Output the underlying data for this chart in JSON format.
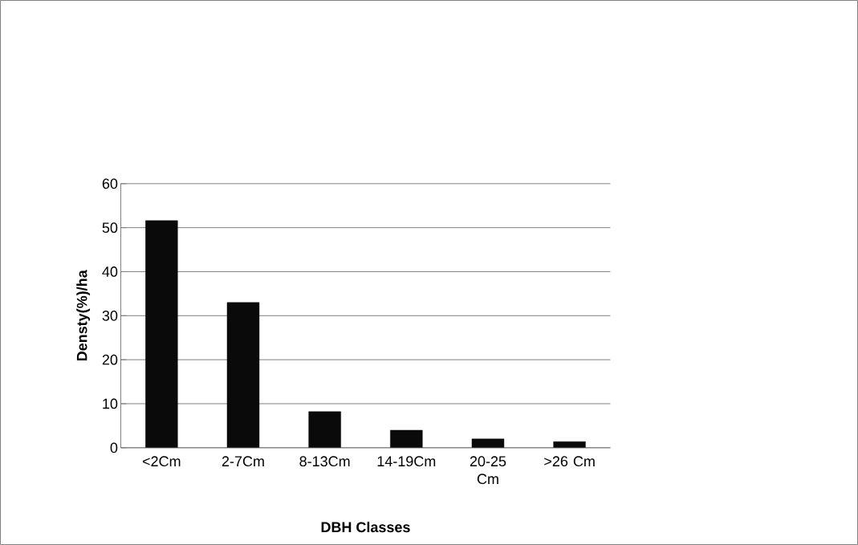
{
  "chart_data": {
    "type": "bar",
    "xlabel": "DBH Classes",
    "ylabel": "Densty(%)/ha",
    "categories": [
      "<2Cm",
      "2-7Cm",
      "8-13Cm",
      "14-19Cm",
      "20-25 Cm",
      ">26 Cm"
    ],
    "values": [
      51.6,
      33,
      8.2,
      4,
      2,
      1.4
    ],
    "color": "#0a0a0a",
    "ylim": [
      0,
      60
    ],
    "yticks": [
      0,
      10,
      20,
      30,
      40,
      50,
      60
    ],
    "grid": "y"
  }
}
